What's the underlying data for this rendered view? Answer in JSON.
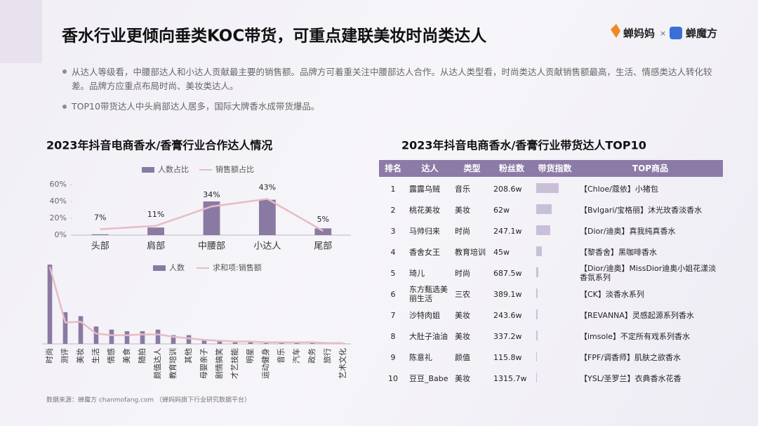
{
  "header": {
    "title": "香水行业更倾向垂类KOC带货，可重点建联美妆时尚类达人",
    "logos": [
      "蝉妈妈",
      "×",
      "蝉魔方"
    ]
  },
  "bullets": [
    "从达人等级看，中腰部达人和小达人贡献最主要的销售额。品牌方可着重关注中腰部达人合作。从达人类型看，时尚类达人贡献销售额最高，生活、情感类达人转化较差。品牌方应重点布局时尚、美妆类达人。",
    "TOP10带货达人中头肩部达人居多，国际大牌香水成带货爆品。"
  ],
  "chart_data": [
    {
      "type": "bar-line",
      "title": "2023年抖音电商香水/香膏行业合作达人情况",
      "categories": [
        "头部",
        "肩部",
        "中腰部",
        "小达人",
        "尾部"
      ],
      "series": [
        {
          "name": "人数占比",
          "kind": "bar",
          "color": "#8a7aa3",
          "values": [
            1,
            9,
            40,
            42,
            8
          ]
        },
        {
          "name": "销售额占比",
          "kind": "line",
          "color": "#e6bcc4",
          "values": [
            7,
            11,
            34,
            43,
            5
          ],
          "value_labels": [
            "7%",
            "11%",
            "34%",
            "43%",
            "5%"
          ]
        }
      ],
      "ylim": [
        0,
        60
      ],
      "yticks": [
        {
          "value": 0,
          "label": "0%"
        },
        {
          "value": 20,
          "label": "20%"
        },
        {
          "value": 40,
          "label": "40%"
        },
        {
          "value": 60,
          "label": "60%"
        }
      ]
    },
    {
      "type": "bar-line",
      "categories": [
        "时尚",
        "测评",
        "美妆",
        "生活",
        "情感",
        "美食",
        "随拍",
        "颜值达人",
        "教育培训",
        "其他",
        "母婴亲子",
        "剧情搞笑",
        "才艺技能",
        "明星",
        "运动健身",
        "音乐",
        "汽车",
        "政务",
        "旅行",
        "艺术文化"
      ],
      "series": [
        {
          "name": "人数",
          "kind": "bar",
          "color": "#8a7aa3",
          "values": [
            100,
            40,
            35,
            22,
            18,
            16,
            16,
            18,
            11,
            11,
            5,
            3,
            2,
            2,
            1,
            1,
            1,
            1,
            1,
            0.5
          ]
        },
        {
          "name": "求和项:销售额",
          "kind": "line",
          "color": "#e6bcc4",
          "values": [
            97,
            27,
            28,
            13,
            11,
            11,
            12,
            12,
            9,
            7,
            5,
            4,
            3,
            3,
            2,
            2,
            2,
            2,
            1,
            1
          ]
        }
      ]
    }
  ],
  "table": {
    "title": "2023年抖音电商香水/香膏行业带货达人TOP10",
    "columns": [
      "排名",
      "达人",
      "类型",
      "粉丝数",
      "带货指数",
      "TOP商品"
    ],
    "rows": [
      [
        "1",
        "露露乌贼",
        "音乐",
        "208.6w",
        32,
        "【Chloe/蔻依】小猪包"
      ],
      [
        "2",
        "桃花美妆",
        "美妆",
        "62w",
        22,
        "【Bvlgari/宝格丽】沐光玫香淡香水"
      ],
      [
        "3",
        "马帅归来",
        "时尚",
        "247.1w",
        20,
        "【Dior/迪奥】真我纯真香水"
      ],
      [
        "4",
        "香舍女王",
        "教育培训",
        "45w",
        8,
        "【黎香舍】黑咖啡香水"
      ],
      [
        "5",
        "琦儿",
        "时尚",
        "687.5w",
        3,
        "【Dior/迪奥】MissDior迪奥小姐花漾淡香氛系列"
      ],
      [
        "6",
        "东方甄选美丽生活",
        "三农",
        "389.1w",
        2,
        "【CK】淡香水系列"
      ],
      [
        "7",
        "沙特肉姐",
        "美妆",
        "243.6w",
        2,
        "【REVANNA】灵感起源系列香水"
      ],
      [
        "8",
        "大肚子油油",
        "美妆",
        "337.2w",
        1.5,
        "【imsole】不定所有戏系列香水"
      ],
      [
        "9",
        "陈意礼",
        "颜值",
        "115.8w",
        1,
        "【FPF/调香师】肌肤之欲香水"
      ],
      [
        "10",
        "豆豆_Babe",
        "美妆",
        "1315.7w",
        1,
        "【YSL/圣罗兰】衣典香水花香"
      ]
    ]
  },
  "footer": "数据来源：蝉魔方 chanmofang.com （蝉妈妈旗下行业研究数据平台）"
}
